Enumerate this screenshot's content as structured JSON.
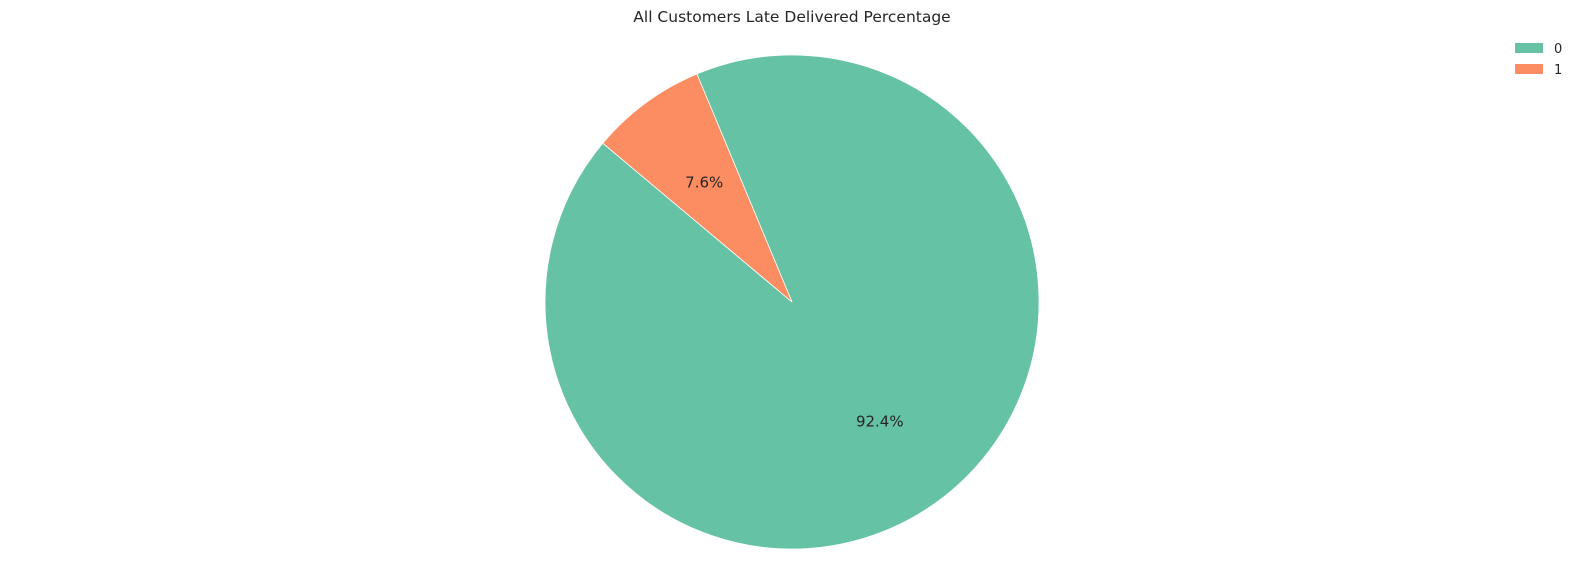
{
  "chart_data": {
    "type": "pie",
    "title": "All Customers Late Delivered Percentage",
    "categories": [
      "0",
      "1"
    ],
    "values": [
      92.4,
      7.6
    ],
    "labels": [
      "92.4%",
      "7.6%"
    ],
    "colors": [
      "#66c2a5",
      "#fc8d62"
    ],
    "start_angle_deg": 140,
    "direction": "counterclockwise",
    "legend": {
      "placement": "top-right",
      "entries": [
        "0",
        "1"
      ]
    }
  }
}
